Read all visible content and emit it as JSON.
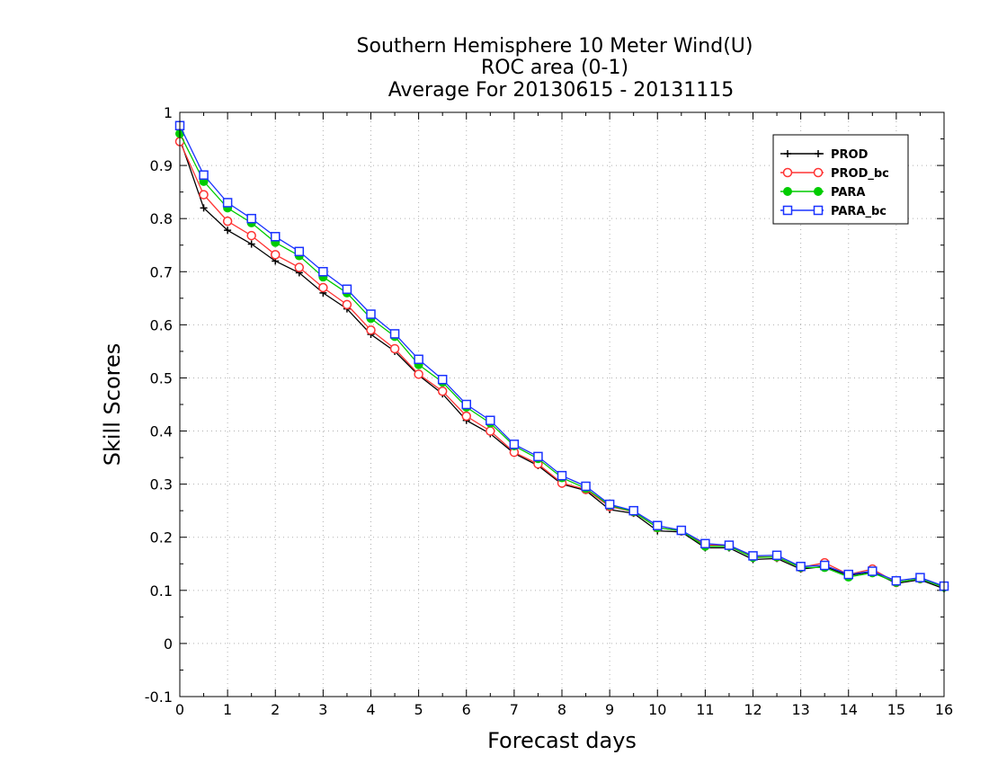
{
  "title_lines": [
    "Southern Hemisphere 10 Meter Wind(U)",
    "ROC area (0-1)",
    "Average For 20130615 - 20131115"
  ],
  "chart_data": {
    "type": "line",
    "title": "Southern Hemisphere 10 Meter Wind(U)",
    "subtitle": "ROC area (0-1) / Average For 20130615 - 20131115",
    "xlabel": "Forecast days",
    "ylabel": "Skill Scores",
    "xlim": [
      0,
      16
    ],
    "ylim": [
      -0.1,
      1
    ],
    "x_ticks": [
      "0",
      "1",
      "2",
      "3",
      "4",
      "5",
      "6",
      "7",
      "8",
      "9",
      "10",
      "11",
      "12",
      "13",
      "14",
      "15",
      "16"
    ],
    "y_ticks": [
      "-0.1",
      "0",
      "0.1",
      "0.2",
      "0.3",
      "0.4",
      "0.5",
      "0.6",
      "0.7",
      "0.8",
      "0.9",
      "1"
    ],
    "grid": true,
    "legend_position": "top-right",
    "x": [
      0,
      0.5,
      1,
      1.5,
      2,
      2.5,
      3,
      3.5,
      4,
      4.5,
      5,
      5.5,
      6,
      6.5,
      7,
      7.5,
      8,
      8.5,
      9,
      9.5,
      10,
      10.5,
      11,
      11.5,
      12,
      12.5,
      13,
      13.5,
      14,
      14.5,
      15,
      15.5,
      16
    ],
    "series": [
      {
        "name": "PROD",
        "color": "#000000",
        "marker": "plus",
        "values": [
          0.95,
          0.82,
          0.778,
          0.752,
          0.72,
          0.698,
          0.66,
          0.63,
          0.582,
          0.55,
          0.505,
          0.47,
          0.42,
          0.395,
          0.358,
          0.335,
          0.3,
          0.288,
          0.252,
          0.245,
          0.212,
          0.21,
          0.18,
          0.18,
          0.158,
          0.16,
          0.14,
          0.145,
          0.128,
          0.135,
          0.113,
          0.12,
          0.103
        ]
      },
      {
        "name": "PROD_bc",
        "color": "#ff3333",
        "marker": "open-circle",
        "values": [
          0.945,
          0.845,
          0.795,
          0.768,
          0.732,
          0.708,
          0.67,
          0.638,
          0.59,
          0.555,
          0.507,
          0.475,
          0.428,
          0.4,
          0.36,
          0.338,
          0.302,
          0.29,
          0.258,
          0.248,
          0.218,
          0.212,
          0.185,
          0.185,
          0.163,
          0.163,
          0.143,
          0.152,
          0.13,
          0.14,
          0.115,
          0.122,
          0.108
        ]
      },
      {
        "name": "PARA",
        "color": "#00cc00",
        "marker": "filled-circle",
        "values": [
          0.96,
          0.87,
          0.82,
          0.792,
          0.755,
          0.73,
          0.69,
          0.66,
          0.612,
          0.578,
          0.525,
          0.492,
          0.445,
          0.415,
          0.372,
          0.348,
          0.312,
          0.292,
          0.26,
          0.248,
          0.218,
          0.212,
          0.183,
          0.183,
          0.162,
          0.163,
          0.143,
          0.143,
          0.125,
          0.133,
          0.115,
          0.122,
          0.106
        ]
      },
      {
        "name": "PARA_bc",
        "color": "#1a33ff",
        "marker": "open-square",
        "values": [
          0.975,
          0.882,
          0.83,
          0.8,
          0.766,
          0.738,
          0.7,
          0.667,
          0.62,
          0.583,
          0.535,
          0.497,
          0.45,
          0.42,
          0.375,
          0.352,
          0.316,
          0.296,
          0.262,
          0.25,
          0.222,
          0.213,
          0.188,
          0.185,
          0.165,
          0.166,
          0.145,
          0.147,
          0.13,
          0.136,
          0.118,
          0.124,
          0.108
        ]
      }
    ]
  }
}
